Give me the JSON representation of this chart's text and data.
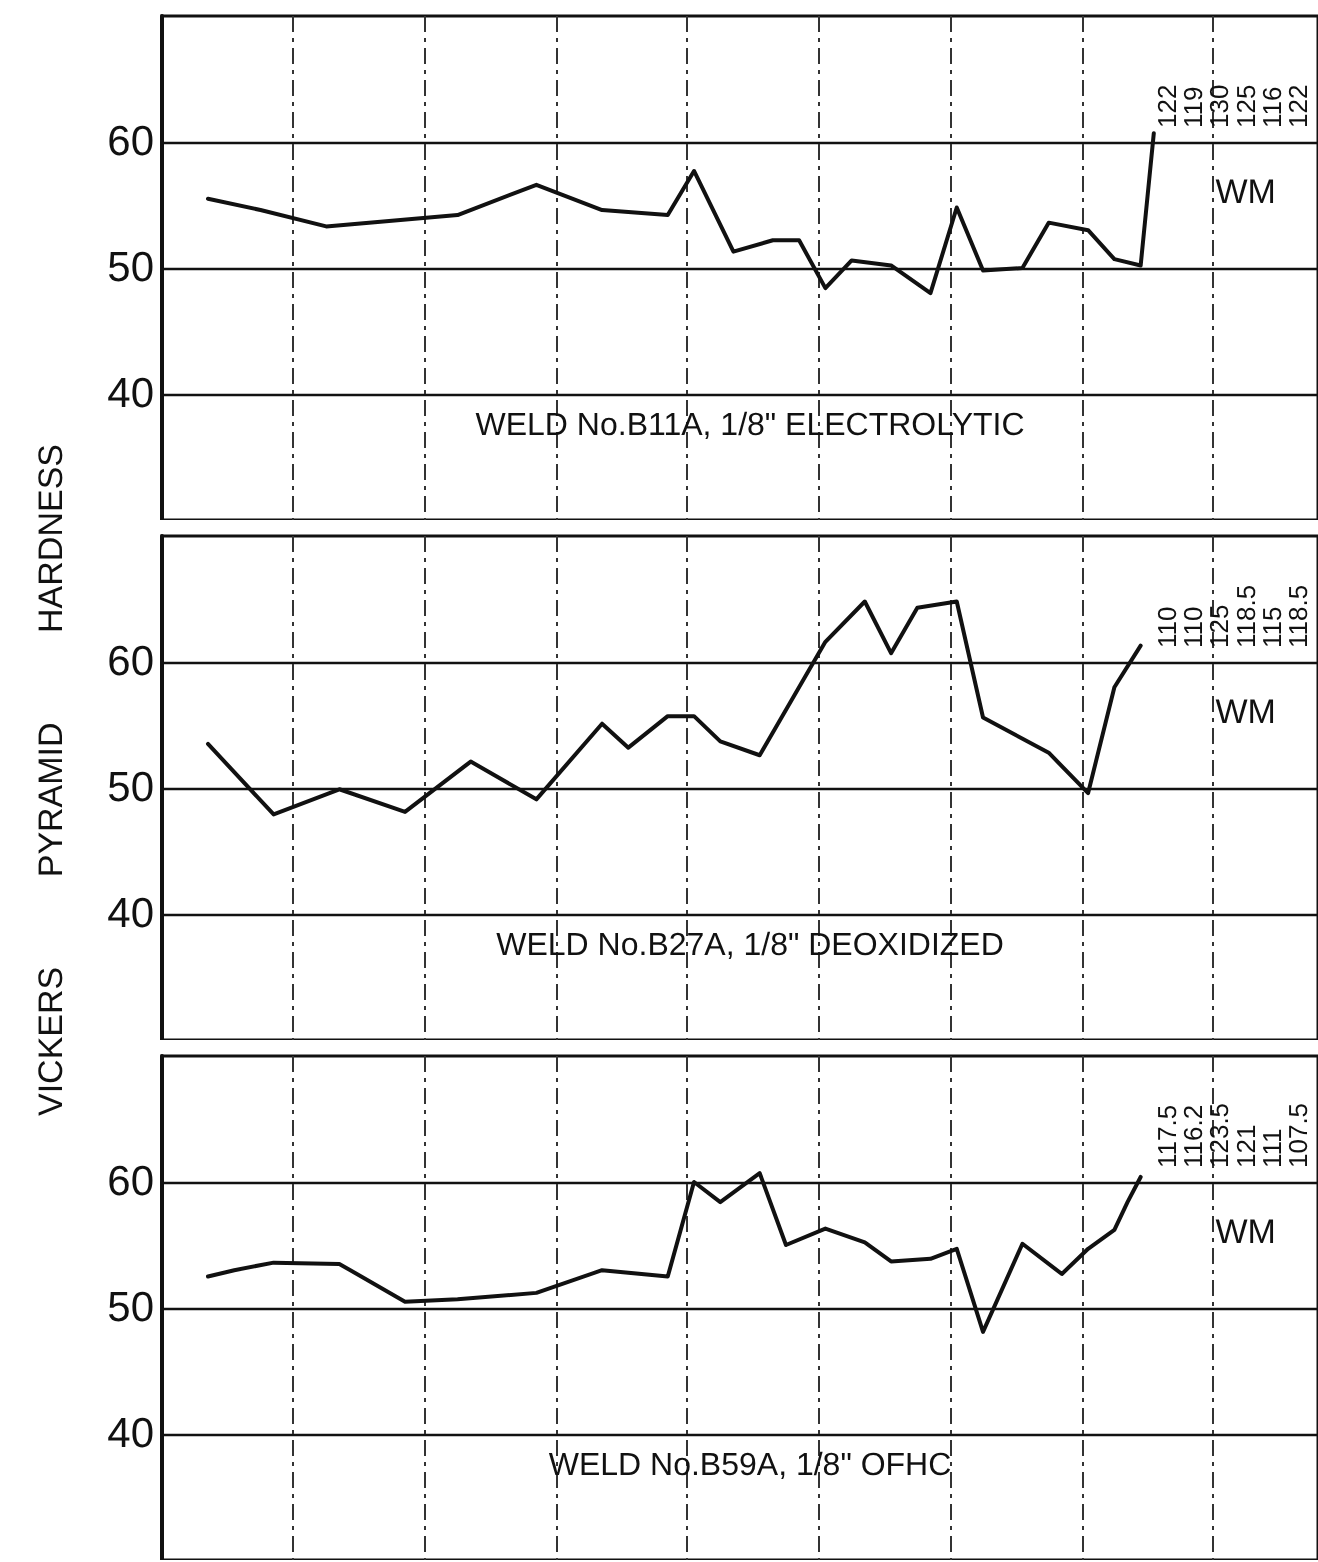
{
  "chart_data": [
    {
      "type": "line",
      "title": "WELD No.B11A, 1/8\" ELECTROLYTIC",
      "tick_labels": "y",
      "grid": true,
      "marker": "none",
      "line_style": "solid",
      "categories": [
        null,
        null,
        null,
        null,
        null,
        null,
        null,
        null,
        null,
        null,
        null,
        null,
        null,
        null,
        null,
        null,
        null,
        null,
        null,
        null,
        null,
        null,
        null,
        null,
        null,
        null,
        null,
        null,
        null,
        null,
        null,
        null,
        null,
        null,
        null,
        null,
        null,
        null,
        null,
        null,
        null,
        null,
        null,
        null,
        null,
        null,
        null,
        null,
        null,
        null,
        null,
        null,
        null,
        null,
        null,
        null,
        null,
        null,
        null,
        null,
        null,
        null,
        null,
        null,
        null,
        null,
        null,
        null,
        null,
        null,
        null,
        null,
        null,
        null,
        null,
        null,
        null,
        null,
        null,
        null,
        null,
        null,
        null,
        null,
        null,
        null,
        null,
        null
      ],
      "series": [
        {
          "color": "#111111",
          "values": [
            null,
            null,
            null,
            55.5,
            null,
            null,
            null,
            54.6,
            null,
            null,
            null,
            null,
            53.3,
            null,
            null,
            null,
            null,
            null,
            null,
            null,
            null,
            null,
            54.2,
            null,
            null,
            null,
            null,
            null,
            56.6,
            null,
            null,
            null,
            null,
            54.6,
            null,
            null,
            null,
            null,
            54.2,
            null,
            57.7,
            null,
            null,
            51.3,
            null,
            null,
            52.2,
            null,
            52.2,
            null,
            48.4,
            null,
            50.6,
            null,
            null,
            50.2,
            null,
            null,
            48.0,
            null,
            54.8,
            null,
            49.8,
            null,
            null,
            50.0,
            null,
            53.6,
            null,
            null,
            53.0,
            null,
            50.7,
            null,
            50.2,
            60.7,
            null,
            null,
            null,
            null,
            null,
            null,
            null,
            null,
            null,
            null,
            null,
            null
          ]
        }
      ],
      "ylim": [
        30,
        70
      ],
      "yticks": [
        40,
        50,
        60
      ],
      "annotations": [
        "122",
        "119",
        "130",
        "125",
        "116",
        "122",
        "WM"
      ]
    },
    {
      "type": "line",
      "title": "WELD No.B27A, 1/8\" DEOXIDIZED",
      "ylabel": "VICKERS PYRAMID HARDNESS",
      "tick_labels": "y",
      "grid": true,
      "marker": "none",
      "line_style": "solid",
      "categories": [
        null,
        null,
        null,
        null,
        null,
        null,
        null,
        null,
        null,
        null,
        null,
        null,
        null,
        null,
        null,
        null,
        null,
        null,
        null,
        null,
        null,
        null,
        null,
        null,
        null,
        null,
        null,
        null,
        null,
        null,
        null,
        null,
        null,
        null,
        null,
        null,
        null,
        null,
        null,
        null,
        null,
        null,
        null,
        null,
        null,
        null,
        null,
        null,
        null,
        null,
        null,
        null,
        null,
        null,
        null,
        null,
        null,
        null,
        null,
        null,
        null,
        null,
        null,
        null,
        null,
        null,
        null,
        null,
        null,
        null,
        null,
        null,
        null,
        null,
        null,
        null,
        null,
        null,
        null,
        null,
        null,
        null,
        null,
        null,
        null,
        null,
        null,
        null
      ],
      "series": [
        {
          "color": "#111111",
          "values": [
            null,
            null,
            null,
            53.5,
            null,
            null,
            null,
            null,
            47.9,
            null,
            null,
            null,
            null,
            49.9,
            null,
            null,
            null,
            null,
            48.1,
            null,
            null,
            null,
            null,
            52.1,
            null,
            null,
            null,
            null,
            49.1,
            null,
            null,
            null,
            null,
            55.1,
            null,
            53.2,
            null,
            null,
            55.7,
            null,
            55.7,
            null,
            53.7,
            null,
            null,
            52.6,
            null,
            null,
            null,
            null,
            61.6,
            null,
            null,
            64.8,
            null,
            60.7,
            null,
            64.3,
            null,
            null,
            64.8,
            null,
            55.6,
            null,
            null,
            null,
            null,
            52.8,
            null,
            null,
            49.6,
            null,
            58.0,
            null,
            61.3,
            null,
            null,
            null,
            null,
            null,
            null,
            null,
            null,
            null,
            null,
            null,
            null,
            null
          ]
        }
      ],
      "ylim": [
        30,
        70
      ],
      "yticks": [
        40,
        50,
        60
      ],
      "annotations": [
        "110",
        "110",
        "125",
        "118.5",
        "115",
        "118.5",
        "WM"
      ]
    },
    {
      "type": "line",
      "title": "WELD No.B59A, 1/8\" OFHC",
      "tick_labels": "y",
      "grid": true,
      "marker": "none",
      "line_style": "solid",
      "categories": [
        null,
        null,
        null,
        null,
        null,
        null,
        null,
        null,
        null,
        null,
        null,
        null,
        null,
        null,
        null,
        null,
        null,
        null,
        null,
        null,
        null,
        null,
        null,
        null,
        null,
        null,
        null,
        null,
        null,
        null,
        null,
        null,
        null,
        null,
        null,
        null,
        null,
        null,
        null,
        null,
        null,
        null,
        null,
        null,
        null,
        null,
        null,
        null,
        null,
        null,
        null,
        null,
        null,
        null,
        null,
        null,
        null,
        null,
        null,
        null,
        null,
        null,
        null,
        null,
        null,
        null,
        null,
        null,
        null,
        null,
        null,
        null,
        null,
        null,
        null,
        null,
        null,
        null,
        null,
        null,
        null,
        null,
        null,
        null,
        null,
        null,
        null,
        null
      ],
      "series": [
        {
          "color": "#111111",
          "values": [
            null,
            null,
            null,
            52.5,
            null,
            53.0,
            null,
            null,
            53.6,
            null,
            null,
            null,
            null,
            53.5,
            null,
            null,
            null,
            null,
            50.5,
            null,
            null,
            null,
            50.7,
            null,
            null,
            null,
            null,
            null,
            51.2,
            null,
            null,
            null,
            null,
            53.0,
            null,
            null,
            null,
            null,
            52.5,
            null,
            60.0,
            null,
            58.4,
            null,
            null,
            60.7,
            null,
            55.0,
            null,
            null,
            56.3,
            null,
            null,
            55.2,
            null,
            53.7,
            null,
            null,
            53.9,
            null,
            54.7,
            null,
            48.1,
            null,
            null,
            55.1,
            null,
            null,
            52.7,
            null,
            54.7,
            null,
            56.2,
            58.4,
            60.4,
            null,
            null,
            null,
            null,
            null,
            null,
            null,
            null,
            null,
            null,
            null,
            null,
            null
          ]
        }
      ],
      "ylim": [
        30,
        70
      ],
      "yticks": [
        40,
        50,
        60
      ],
      "annotations": [
        "117.5",
        "116.2",
        "123.5",
        "121",
        "111",
        "107.5",
        "WM"
      ]
    }
  ]
}
